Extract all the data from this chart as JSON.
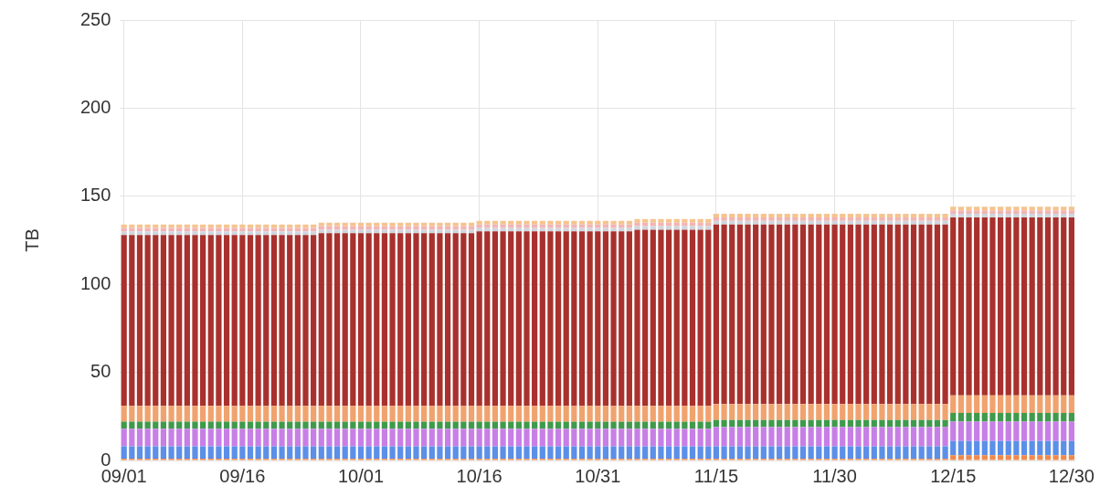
{
  "chart_data": {
    "type": "bar",
    "ylabel": "TB",
    "stacked": true,
    "grid": true,
    "categories": [
      "09/01",
      null,
      null,
      null,
      null,
      null,
      null,
      null,
      null,
      null,
      null,
      null,
      null,
      null,
      null,
      "09/16",
      null,
      null,
      null,
      null,
      null,
      null,
      null,
      null,
      null,
      null,
      null,
      null,
      null,
      null,
      "10/01",
      null,
      null,
      null,
      null,
      null,
      null,
      null,
      null,
      null,
      null,
      null,
      null,
      null,
      null,
      "10/16",
      null,
      null,
      null,
      null,
      null,
      null,
      null,
      null,
      null,
      null,
      null,
      null,
      null,
      null,
      "10/31",
      null,
      null,
      null,
      null,
      null,
      null,
      null,
      null,
      null,
      null,
      null,
      null,
      null,
      null,
      "11/15",
      null,
      null,
      null,
      null,
      null,
      null,
      null,
      null,
      null,
      null,
      null,
      null,
      null,
      null,
      "11/30",
      null,
      null,
      null,
      null,
      null,
      null,
      null,
      null,
      null,
      null,
      null,
      null,
      null,
      null,
      "12/15",
      null,
      null,
      null,
      null,
      null,
      null,
      null,
      null,
      null,
      null,
      null,
      null,
      null,
      null,
      "12/30"
    ],
    "ylim": [
      0,
      250
    ],
    "yticks": [
      0,
      50,
      100,
      150,
      200,
      250
    ],
    "series": [
      {
        "color": "#ef8a4c",
        "values": [
          1,
          1,
          1,
          1,
          1,
          1,
          1,
          1,
          1,
          1,
          1,
          1,
          1,
          1,
          1,
          1,
          1,
          1,
          1,
          1,
          1,
          1,
          1,
          1,
          1,
          1,
          1,
          1,
          1,
          1,
          1,
          1,
          1,
          1,
          1,
          1,
          1,
          1,
          1,
          1,
          1,
          1,
          1,
          1,
          1,
          1,
          1,
          1,
          1,
          1,
          1,
          1,
          1,
          1,
          1,
          1,
          1,
          1,
          1,
          1,
          1,
          1,
          1,
          1,
          1,
          1,
          1,
          1,
          1,
          1,
          1,
          1,
          1,
          1,
          1,
          1,
          1,
          1,
          1,
          1,
          1,
          1,
          1,
          1,
          1,
          1,
          1,
          1,
          1,
          1,
          1,
          1,
          1,
          1,
          1,
          1,
          1,
          1,
          1,
          1,
          1,
          1,
          1,
          1,
          1,
          3,
          3,
          3,
          3,
          3,
          3,
          3,
          3,
          3,
          3,
          3,
          3,
          3,
          3,
          3,
          3
        ]
      },
      {
        "color": "#5b8fe8",
        "values": [
          7,
          7,
          7,
          7,
          7,
          7,
          7,
          7,
          7,
          7,
          7,
          7,
          7,
          7,
          7,
          7,
          7,
          7,
          7,
          7,
          7,
          7,
          7,
          7,
          7,
          7,
          7,
          7,
          7,
          7,
          7,
          7,
          7,
          7,
          7,
          7,
          7,
          7,
          7,
          7,
          7,
          7,
          7,
          7,
          7,
          7,
          7,
          7,
          7,
          7,
          7,
          7,
          7,
          7,
          7,
          7,
          7,
          7,
          7,
          7,
          7,
          7,
          7,
          7,
          7,
          7,
          7,
          7,
          7,
          7,
          7,
          7,
          7,
          7,
          7,
          7,
          7,
          7,
          7,
          7,
          7,
          7,
          7,
          7,
          7,
          7,
          7,
          7,
          7,
          7,
          7,
          7,
          7,
          7,
          7,
          7,
          7,
          7,
          7,
          7,
          7,
          7,
          7,
          7,
          7,
          8,
          8,
          8,
          8,
          8,
          8,
          8,
          8,
          8,
          8,
          8,
          8,
          8,
          8,
          8,
          8
        ]
      },
      {
        "color": "#c77fe6",
        "values": [
          10,
          10,
          10,
          10,
          10,
          10,
          10,
          10,
          10,
          10,
          10,
          10,
          10,
          10,
          10,
          10,
          10,
          10,
          10,
          10,
          10,
          10,
          10,
          10,
          10,
          10,
          10,
          10,
          10,
          10,
          10,
          10,
          10,
          10,
          10,
          10,
          10,
          10,
          10,
          10,
          10,
          10,
          10,
          10,
          10,
          10,
          10,
          10,
          10,
          10,
          10,
          10,
          10,
          10,
          10,
          10,
          10,
          10,
          10,
          10,
          10,
          10,
          10,
          10,
          10,
          10,
          10,
          10,
          10,
          10,
          10,
          10,
          10,
          10,
          10,
          11,
          11,
          11,
          11,
          11,
          11,
          11,
          11,
          11,
          11,
          11,
          11,
          11,
          11,
          11,
          11,
          11,
          11,
          11,
          11,
          11,
          11,
          11,
          11,
          11,
          11,
          11,
          11,
          11,
          11,
          11,
          11,
          11,
          11,
          11,
          11,
          11,
          11,
          11,
          11,
          11,
          11,
          11,
          11,
          11,
          11
        ]
      },
      {
        "color": "#3f9a4c",
        "values": [
          4,
          4,
          4,
          4,
          4,
          4,
          4,
          4,
          4,
          4,
          4,
          4,
          4,
          4,
          4,
          4,
          4,
          4,
          4,
          4,
          4,
          4,
          4,
          4,
          4,
          4,
          4,
          4,
          4,
          4,
          4,
          4,
          4,
          4,
          4,
          4,
          4,
          4,
          4,
          4,
          4,
          4,
          4,
          4,
          4,
          4,
          4,
          4,
          4,
          4,
          4,
          4,
          4,
          4,
          4,
          4,
          4,
          4,
          4,
          4,
          4,
          4,
          4,
          4,
          4,
          4,
          4,
          4,
          4,
          4,
          4,
          4,
          4,
          4,
          4,
          4,
          4,
          4,
          4,
          4,
          4,
          4,
          4,
          4,
          4,
          4,
          4,
          4,
          4,
          4,
          4,
          4,
          4,
          4,
          4,
          4,
          4,
          4,
          4,
          4,
          4,
          4,
          4,
          4,
          4,
          5,
          5,
          5,
          5,
          5,
          5,
          5,
          5,
          5,
          5,
          5,
          5,
          5,
          5,
          5,
          5
        ]
      },
      {
        "color": "#f0a36e",
        "values": [
          9,
          9,
          9,
          9,
          9,
          9,
          9,
          9,
          9,
          9,
          9,
          9,
          9,
          9,
          9,
          9,
          9,
          9,
          9,
          9,
          9,
          9,
          9,
          9,
          9,
          9,
          9,
          9,
          9,
          9,
          9,
          9,
          9,
          9,
          9,
          9,
          9,
          9,
          9,
          9,
          9,
          9,
          9,
          9,
          9,
          9,
          9,
          9,
          9,
          9,
          9,
          9,
          9,
          9,
          9,
          9,
          9,
          9,
          9,
          9,
          9,
          9,
          9,
          9,
          9,
          9,
          9,
          9,
          9,
          9,
          9,
          9,
          9,
          9,
          9,
          9,
          9,
          9,
          9,
          9,
          9,
          9,
          9,
          9,
          9,
          9,
          9,
          9,
          9,
          9,
          9,
          9,
          9,
          9,
          9,
          9,
          9,
          9,
          9,
          9,
          9,
          9,
          9,
          9,
          9,
          10,
          10,
          10,
          10,
          10,
          10,
          10,
          10,
          10,
          10,
          10,
          10,
          10,
          10,
          10,
          10
        ]
      },
      {
        "color": "#a8312d",
        "values": [
          97,
          97,
          97,
          97,
          97,
          97,
          97,
          97,
          97,
          97,
          97,
          97,
          97,
          97,
          97,
          97,
          97,
          97,
          97,
          97,
          97,
          97,
          97,
          97,
          97,
          98,
          98,
          98,
          98,
          98,
          98,
          98,
          98,
          98,
          98,
          98,
          98,
          98,
          98,
          98,
          98,
          98,
          98,
          98,
          98,
          99,
          99,
          99,
          99,
          99,
          99,
          99,
          99,
          99,
          99,
          99,
          99,
          99,
          99,
          99,
          99,
          99,
          99,
          99,
          99,
          100,
          100,
          100,
          100,
          100,
          100,
          100,
          100,
          100,
          100,
          102,
          102,
          102,
          102,
          102,
          102,
          102,
          102,
          102,
          102,
          102,
          102,
          102,
          102,
          102,
          102,
          102,
          102,
          102,
          102,
          102,
          102,
          102,
          102,
          102,
          102,
          102,
          102,
          102,
          102,
          101,
          101,
          101,
          101,
          101,
          101,
          101,
          101,
          101,
          101,
          101,
          101,
          101,
          101,
          101,
          101
        ]
      },
      {
        "color": "#cfd6de",
        "values": [
          2,
          2,
          2,
          2,
          2,
          2,
          2,
          2,
          2,
          2,
          2,
          2,
          2,
          2,
          2,
          2,
          2,
          2,
          2,
          2,
          2,
          2,
          2,
          2,
          2,
          2,
          2,
          2,
          2,
          2,
          2,
          2,
          2,
          2,
          2,
          2,
          2,
          2,
          2,
          2,
          2,
          2,
          2,
          2,
          2,
          2,
          2,
          2,
          2,
          2,
          2,
          2,
          2,
          2,
          2,
          2,
          2,
          2,
          2,
          2,
          2,
          2,
          2,
          2,
          2,
          2,
          2,
          2,
          2,
          2,
          2,
          2,
          2,
          2,
          2,
          2,
          2,
          2,
          2,
          2,
          2,
          2,
          2,
          2,
          2,
          2,
          2,
          2,
          2,
          2,
          2,
          2,
          2,
          2,
          2,
          2,
          2,
          2,
          2,
          2,
          2,
          2,
          2,
          2,
          2,
          2,
          2,
          2,
          2,
          2,
          2,
          2,
          2,
          2,
          2,
          2,
          2,
          2,
          2,
          2,
          2
        ]
      },
      {
        "color": "#f2b4b4",
        "values": [
          2,
          2,
          2,
          2,
          2,
          2,
          2,
          2,
          2,
          2,
          2,
          2,
          2,
          2,
          2,
          2,
          2,
          2,
          2,
          2,
          2,
          2,
          2,
          2,
          2,
          2,
          2,
          2,
          2,
          2,
          2,
          2,
          2,
          2,
          2,
          2,
          2,
          2,
          2,
          2,
          2,
          2,
          2,
          2,
          2,
          2,
          2,
          2,
          2,
          2,
          2,
          2,
          2,
          2,
          2,
          2,
          2,
          2,
          2,
          2,
          2,
          2,
          2,
          2,
          2,
          2,
          2,
          2,
          2,
          2,
          2,
          2,
          2,
          2,
          2,
          2,
          2,
          2,
          2,
          2,
          2,
          2,
          2,
          2,
          2,
          2,
          2,
          2,
          2,
          2,
          2,
          2,
          2,
          2,
          2,
          2,
          2,
          2,
          2,
          2,
          2,
          2,
          2,
          2,
          2,
          2,
          2,
          2,
          2,
          2,
          2,
          2,
          2,
          2,
          2,
          2,
          2,
          2,
          2,
          2,
          2
        ]
      },
      {
        "color": "#f5c48f",
        "values": [
          2,
          2,
          2,
          2,
          2,
          2,
          2,
          2,
          2,
          2,
          2,
          2,
          2,
          2,
          2,
          2,
          2,
          2,
          2,
          2,
          2,
          2,
          2,
          2,
          2,
          2,
          2,
          2,
          2,
          2,
          2,
          2,
          2,
          2,
          2,
          2,
          2,
          2,
          2,
          2,
          2,
          2,
          2,
          2,
          2,
          2,
          2,
          2,
          2,
          2,
          2,
          2,
          2,
          2,
          2,
          2,
          2,
          2,
          2,
          2,
          2,
          2,
          2,
          2,
          2,
          2,
          2,
          2,
          2,
          2,
          2,
          2,
          2,
          2,
          2,
          2,
          2,
          2,
          2,
          2,
          2,
          2,
          2,
          2,
          2,
          2,
          2,
          2,
          2,
          2,
          2,
          2,
          2,
          2,
          2,
          2,
          2,
          2,
          2,
          2,
          2,
          2,
          2,
          2,
          2,
          2,
          2,
          2,
          2,
          2,
          2,
          2,
          2,
          2,
          2,
          2,
          2,
          2,
          2,
          2,
          2
        ]
      }
    ]
  }
}
